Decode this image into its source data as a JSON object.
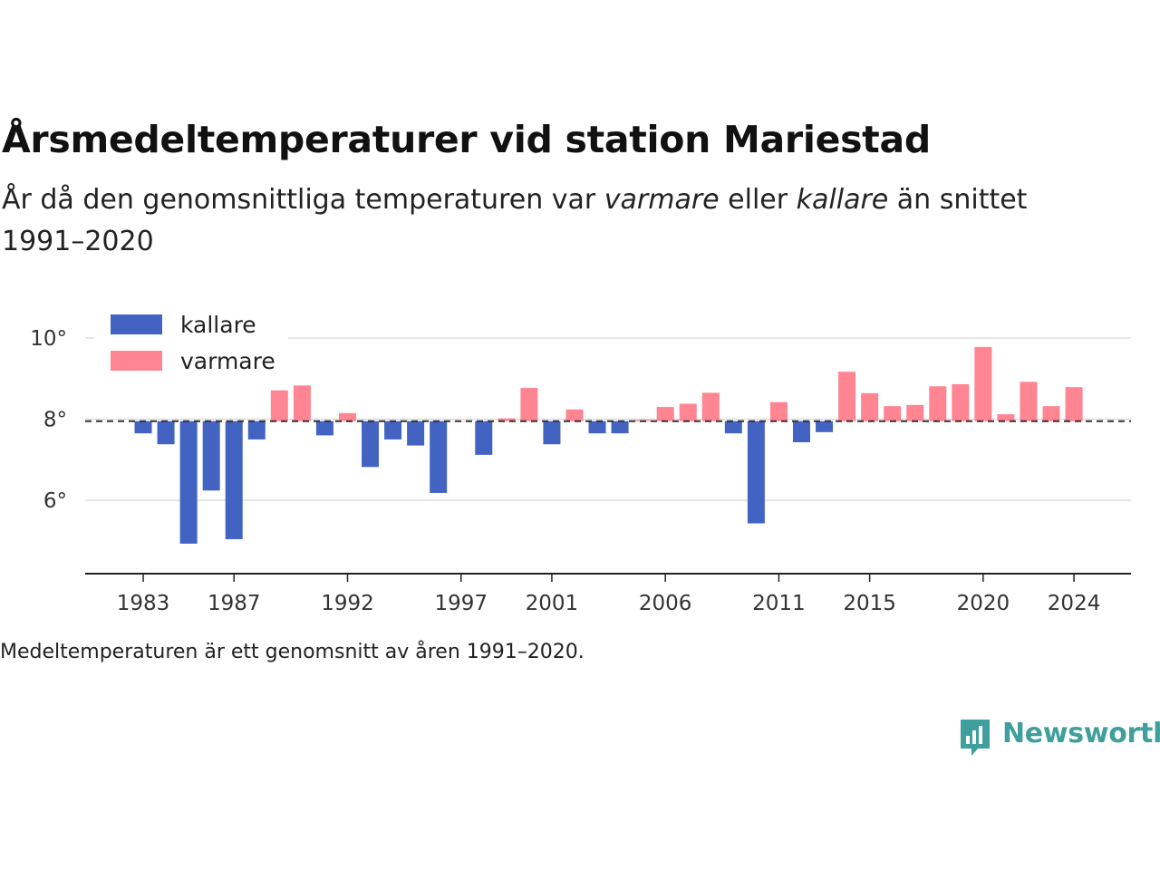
{
  "header": {
    "title": "Årsmedeltemperaturer vid station Mariestad",
    "subtitle_part1": "År då den genomsnittliga temperaturen var ",
    "subtitle_warm": "varmare",
    "subtitle_part2": " eller ",
    "subtitle_cold": "kallare",
    "subtitle_part3": " än snittet 1991–2020"
  },
  "caption": "Medeltemperaturen är ett genomsnitt av åren 1991–2020.",
  "brand": {
    "name": "Newsworthy",
    "color": "#3f9f9c",
    "icon": "newsworthy-logo-icon"
  },
  "chart_data": {
    "type": "bar",
    "baseline": 7.95,
    "ylim": [
      4.2,
      10.8
    ],
    "yticks": [
      6,
      8,
      10
    ],
    "ytick_labels": [
      "6°",
      "8°",
      "10°"
    ],
    "xticks": [
      1983,
      1987,
      1992,
      1997,
      2001,
      2006,
      2011,
      2015,
      2020,
      2024
    ],
    "xtick_labels": [
      "1983",
      "1987",
      "1992",
      "1997",
      "2001",
      "2006",
      "2011",
      "2015",
      "2020",
      "2024"
    ],
    "grid": true,
    "legend_position": "top-left",
    "colors": {
      "kallare": "#4263c2",
      "varmare": "#ff8593"
    },
    "series": [
      {
        "name": "kallare"
      },
      {
        "name": "varmare"
      }
    ],
    "years": [
      1983,
      1984,
      1985,
      1986,
      1987,
      1988,
      1989,
      1990,
      1991,
      1992,
      1993,
      1994,
      1995,
      1996,
      1997,
      1998,
      1999,
      2000,
      2001,
      2002,
      2003,
      2004,
      2005,
      2006,
      2007,
      2008,
      2009,
      2010,
      2011,
      2012,
      2013,
      2014,
      2015,
      2016,
      2017,
      2018,
      2019,
      2020,
      2021,
      2022,
      2023,
      2024
    ],
    "values": [
      7.65,
      7.38,
      4.93,
      6.24,
      5.04,
      7.5,
      8.71,
      8.83,
      7.6,
      8.15,
      6.82,
      7.5,
      7.35,
      6.18,
      7.95,
      7.12,
      8.02,
      8.77,
      7.38,
      8.24,
      7.65,
      7.65,
      7.98,
      8.3,
      8.38,
      8.65,
      7.65,
      5.43,
      8.42,
      7.43,
      7.68,
      9.17,
      8.64,
      8.32,
      8.35,
      8.81,
      8.86,
      9.78,
      8.12,
      8.92,
      8.32,
      8.79
    ]
  }
}
